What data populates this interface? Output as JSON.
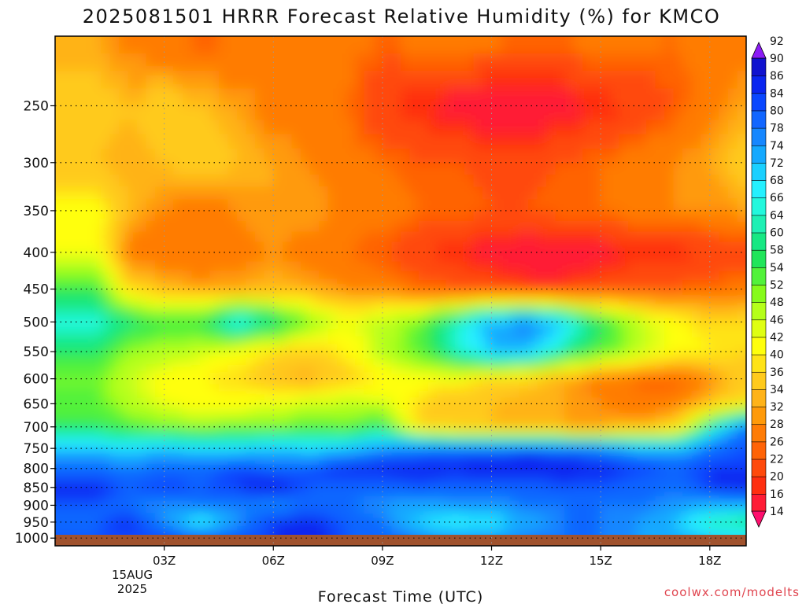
{
  "chart_data": {
    "type": "heatmap",
    "title": "2025081501 HRRR Forecast Relative Humidity (%) for KMCO",
    "xlabel": "Forecast Time (UTC)",
    "ylabel": "",
    "y_scale": "log",
    "y_inverted": true,
    "x_ticks": [
      "03Z",
      "06Z",
      "09Z",
      "12Z",
      "15Z",
      "18Z"
    ],
    "x_date_label": [
      "15AUG",
      "2025"
    ],
    "y_ticks": [
      250,
      300,
      350,
      400,
      450,
      500,
      550,
      600,
      650,
      700,
      750,
      800,
      850,
      900,
      950,
      1000
    ],
    "xlim_hours": [
      0,
      19
    ],
    "ylim_hpa": [
      200,
      1025
    ],
    "grid": true,
    "colorbar": {
      "levels": [
        14,
        16,
        20,
        22,
        26,
        28,
        32,
        34,
        36,
        40,
        42,
        46,
        48,
        52,
        54,
        58,
        60,
        64,
        66,
        68,
        72,
        74,
        78,
        80,
        84,
        86,
        90,
        92
      ],
      "colors": [
        "#ff0f6e",
        "#ff1c36",
        "#ff2f10",
        "#ff4a0c",
        "#ff6306",
        "#ff7c06",
        "#ff9a0a",
        "#ffb319",
        "#ffca1c",
        "#ffe317",
        "#ffff0c",
        "#dfff12",
        "#b5ff1a",
        "#86fb1a",
        "#52f23a",
        "#21e55a",
        "#17e883",
        "#1ff0b4",
        "#23f8dd",
        "#25f0ff",
        "#1ad0ff",
        "#14a9ff",
        "#1687ff",
        "#1166ff",
        "#0a47ff",
        "#0a25f0",
        "#1012cf",
        "#8b1cf6"
      ],
      "extend": "both"
    },
    "hours": [
      1,
      2,
      3,
      4,
      5,
      6,
      7,
      8,
      9,
      10,
      11,
      12,
      13,
      14,
      15,
      16,
      17,
      18,
      19
    ],
    "pressure_levels": [
      200,
      250,
      300,
      350,
      400,
      450,
      500,
      550,
      600,
      650,
      700,
      750,
      800,
      850,
      900,
      950,
      1000
    ],
    "values": [
      [
        34,
        30,
        28,
        26,
        28,
        30,
        32,
        30,
        28,
        30,
        32,
        30,
        28,
        28,
        32,
        30,
        28,
        30,
        30
      ],
      [
        38,
        36,
        38,
        36,
        34,
        30,
        30,
        28,
        22,
        20,
        18,
        16,
        16,
        18,
        20,
        22,
        26,
        30,
        34
      ],
      [
        36,
        34,
        36,
        38,
        36,
        34,
        32,
        30,
        28,
        26,
        26,
        24,
        24,
        26,
        28,
        30,
        32,
        34,
        38
      ],
      [
        46,
        36,
        32,
        30,
        32,
        34,
        34,
        30,
        30,
        28,
        28,
        26,
        26,
        28,
        28,
        30,
        32,
        32,
        34
      ],
      [
        48,
        30,
        28,
        28,
        30,
        32,
        30,
        28,
        26,
        22,
        20,
        18,
        16,
        16,
        18,
        20,
        20,
        22,
        22
      ],
      [
        60,
        40,
        36,
        34,
        34,
        36,
        34,
        32,
        30,
        28,
        26,
        24,
        22,
        22,
        24,
        26,
        26,
        28,
        30
      ],
      [
        68,
        62,
        58,
        58,
        72,
        64,
        54,
        46,
        50,
        54,
        66,
        76,
        82,
        72,
        60,
        50,
        44,
        40,
        40
      ],
      [
        62,
        52,
        50,
        48,
        44,
        40,
        38,
        42,
        50,
        56,
        66,
        74,
        74,
        64,
        56,
        50,
        44,
        42,
        40
      ],
      [
        54,
        48,
        44,
        42,
        40,
        36,
        34,
        38,
        42,
        44,
        44,
        40,
        38,
        34,
        30,
        28,
        26,
        32,
        38
      ],
      [
        56,
        50,
        46,
        44,
        44,
        46,
        48,
        50,
        48,
        40,
        36,
        36,
        34,
        34,
        32,
        28,
        30,
        36,
        42
      ],
      [
        60,
        56,
        54,
        52,
        54,
        54,
        56,
        54,
        60,
        40,
        36,
        36,
        34,
        34,
        34,
        36,
        38,
        64,
        82
      ],
      [
        74,
        72,
        74,
        72,
        72,
        74,
        72,
        74,
        78,
        82,
        82,
        82,
        84,
        82,
        80,
        76,
        74,
        82,
        84
      ],
      [
        82,
        80,
        82,
        82,
        86,
        82,
        84,
        88,
        88,
        88,
        88,
        90,
        90,
        90,
        88,
        86,
        84,
        86,
        86
      ],
      [
        88,
        84,
        86,
        84,
        86,
        90,
        84,
        82,
        82,
        84,
        82,
        82,
        82,
        84,
        84,
        82,
        80,
        86,
        88
      ],
      [
        84,
        80,
        78,
        80,
        80,
        78,
        80,
        80,
        78,
        76,
        78,
        78,
        80,
        80,
        80,
        80,
        78,
        76,
        76
      ],
      [
        82,
        88,
        78,
        68,
        78,
        86,
        88,
        84,
        80,
        72,
        68,
        70,
        76,
        80,
        80,
        78,
        74,
        64,
        62
      ],
      [
        84,
        84,
        86,
        84,
        84,
        86,
        88,
        84,
        82,
        80,
        78,
        78,
        80,
        80,
        80,
        78,
        76,
        74,
        72
      ]
    ]
  },
  "watermark": "coolwx.com/modelts"
}
